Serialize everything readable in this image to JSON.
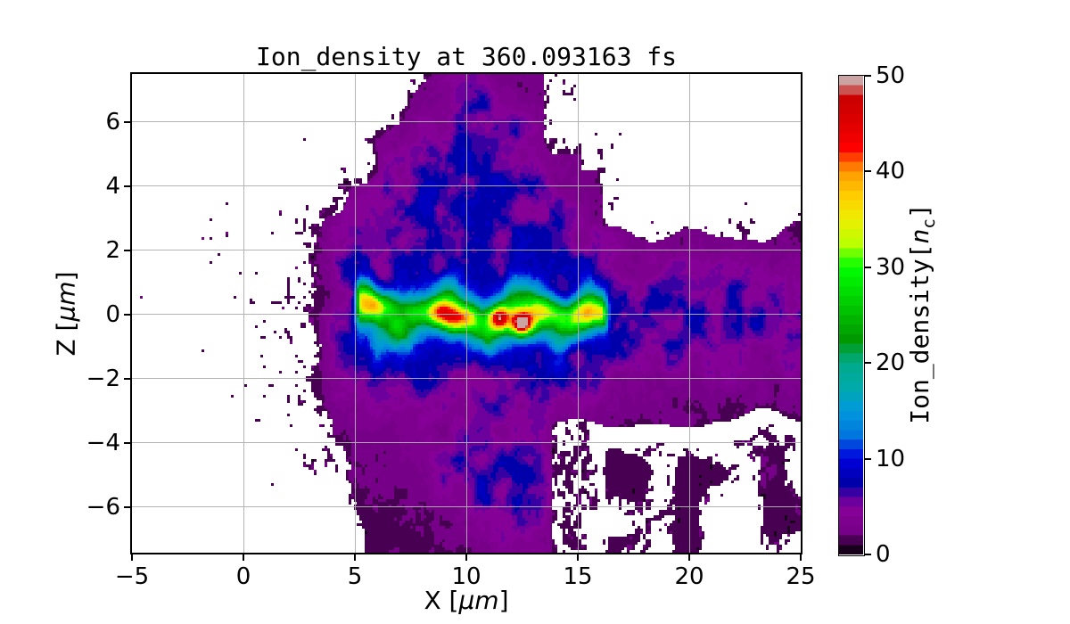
{
  "title": "Ion_density at 360.093163 fs",
  "time_fs": 360.093163,
  "axes": {
    "xlabel": {
      "pre": "X [",
      "unit": "μm",
      "post": "]"
    },
    "ylabel": {
      "pre": "Z [",
      "unit": "μm",
      "post": "]"
    },
    "x_ticks": [
      {
        "v": -5,
        "label": "−5"
      },
      {
        "v": 0,
        "label": "0"
      },
      {
        "v": 5,
        "label": "5"
      },
      {
        "v": 10,
        "label": "10"
      },
      {
        "v": 15,
        "label": "15"
      },
      {
        "v": 20,
        "label": "20"
      },
      {
        "v": 25,
        "label": "25"
      }
    ],
    "z_ticks": [
      {
        "v": 6,
        "label": "6"
      },
      {
        "v": 4,
        "label": "4"
      },
      {
        "v": 2,
        "label": "2"
      },
      {
        "v": 0,
        "label": "0"
      },
      {
        "v": -2,
        "label": "−2"
      },
      {
        "v": -4,
        "label": "−4"
      },
      {
        "v": -6,
        "label": "−6"
      }
    ],
    "grid_x": [
      0,
      5,
      10,
      15,
      20
    ],
    "grid_z": [
      -6,
      -4,
      -2,
      0,
      2,
      4,
      6
    ],
    "grid_color": "#b0b0b0"
  },
  "colorbar": {
    "label_pre": "Ion_density[",
    "label_var": "n",
    "label_sub": "c",
    "label_post": "]",
    "ticks": [
      {
        "v": 0,
        "label": "0"
      },
      {
        "v": 10,
        "label": "10"
      },
      {
        "v": 20,
        "label": "20"
      },
      {
        "v": 30,
        "label": "30"
      },
      {
        "v": 40,
        "label": "40"
      },
      {
        "v": 50,
        "label": "50"
      }
    ]
  },
  "chart_data": {
    "type": "heatmap",
    "title": "Ion_density at 360.093163 fs",
    "xlabel": "X [μm]",
    "ylabel": "Z [μm]",
    "colorbar_label": "Ion_density[n_c]",
    "xlim": [
      -5,
      25
    ],
    "zlim": [
      -7.42,
      7.5
    ],
    "vmin": 0,
    "vmax": 50,
    "levels": 50,
    "colormap": "nipy_spectral",
    "masked_color": "#ffffff",
    "description": "Particle-in-cell ion density map: diffuse plasma cloud (0-6 nc, black/purple) spanning x≈2-16.5 μm with speckled edges; magenta channel of ~3-6 nc around z≈0 extending to x=25; bright wavy filament of 15-50 nc along z≈0 from x≈5 to x≈16.5; white = zero density.",
    "max_density": {
      "x": 12.5,
      "z": -0.3,
      "value": 50
    },
    "colormap_stops": [
      [
        0.0,
        0,
        0,
        0
      ],
      [
        0.05,
        119,
        0,
        136
      ],
      [
        0.1,
        136,
        0,
        153
      ],
      [
        0.15,
        0,
        0,
        170
      ],
      [
        0.2,
        0,
        0,
        221
      ],
      [
        0.25,
        0,
        119,
        221
      ],
      [
        0.3,
        0,
        153,
        221
      ],
      [
        0.35,
        0,
        170,
        170
      ],
      [
        0.4,
        0,
        170,
        136
      ],
      [
        0.45,
        0,
        153,
        0
      ],
      [
        0.5,
        0,
        187,
        0
      ],
      [
        0.55,
        0,
        221,
        0
      ],
      [
        0.6,
        0,
        255,
        0
      ],
      [
        0.65,
        187,
        255,
        0
      ],
      [
        0.7,
        238,
        238,
        0
      ],
      [
        0.75,
        255,
        204,
        0
      ],
      [
        0.8,
        255,
        153,
        0
      ],
      [
        0.85,
        255,
        0,
        0
      ],
      [
        0.9,
        221,
        0,
        0
      ],
      [
        0.95,
        204,
        0,
        0
      ],
      [
        1.0,
        204,
        204,
        204
      ]
    ],
    "field": {
      "seed": 7,
      "grid": [
        250,
        179
      ],
      "mask_below": 0.75,
      "cloud": {
        "left_edge_base": 2.25,
        "left_edge_quad": 0.05,
        "left_edge_top_slope": 0.55,
        "edge_ragged": 1.5,
        "right_edge_sharp": 15.35,
        "right_edge_upper": 16.3,
        "right_edge_bottom": 16.2,
        "top_band_z": 2.6,
        "bottom_band_z": -3.2,
        "sharp_above_z": 4.5,
        "top_gap_x": 13.0,
        "top_gap_z": 4.6,
        "tail_amp": 0.22,
        "tail_scale": 2.8,
        "topright_amp": 0.5,
        "topright_zfade": 3.9,
        "bottomright_amp": 0.85
      },
      "purple": {
        "amp": 5.8,
        "x_rise": 3.0,
        "x_rise_w": 2.2,
        "right_fade": 0.25,
        "z_center": -0.15,
        "sz": 2.15,
        "sz_shrink": 0.75,
        "cap": 6.3,
        "blobs": [
          [
            10.3,
            5.6,
            2.1,
            1.7,
            4.2
          ],
          [
            8.2,
            2.9,
            2.4,
            1.2,
            3.0
          ],
          [
            12.7,
            3.5,
            1.5,
            1.1,
            2.6
          ],
          [
            10.6,
            -4.9,
            1.9,
            1.3,
            3.2
          ],
          [
            12.4,
            -5.9,
            1.3,
            1.0,
            2.8
          ]
        ]
      },
      "filament": {
        "x_start": 4.85,
        "x_end": 16.55,
        "base": 15,
        "wave_amp": 0.3,
        "wave_freq": 1.8,
        "wave_phase": 4.7,
        "z_offset": -0.05,
        "sigma": 0.42,
        "sigma_var": 0.25,
        "hotspots": [
          [
            4.95,
            0.75,
            9,
            0.35,
            0.3
          ],
          [
            5.6,
            0.35,
            7,
            0.5,
            0.35
          ],
          [
            6.35,
            0.3,
            13,
            0.55,
            0.3
          ],
          [
            6.05,
            -0.95,
            6,
            0.25,
            0.6
          ],
          [
            6.8,
            -0.5,
            8,
            0.4,
            0.35
          ],
          [
            7.6,
            0.15,
            9,
            0.5,
            0.3
          ],
          [
            8.8,
            0.05,
            20,
            0.5,
            0.3
          ],
          [
            9.55,
            -0.2,
            16,
            0.4,
            0.28
          ],
          [
            10.2,
            -0.1,
            10,
            0.4,
            0.3
          ],
          [
            11.45,
            -0.1,
            24,
            0.33,
            0.26
          ],
          [
            12.5,
            -0.28,
            30,
            0.42,
            0.3
          ],
          [
            12.52,
            -0.28,
            14,
            0.18,
            0.14
          ],
          [
            13.5,
            0.15,
            13,
            0.5,
            0.3
          ],
          [
            14.3,
            -0.05,
            8,
            0.45,
            0.3
          ],
          [
            15.35,
            0.1,
            11,
            0.5,
            0.3
          ],
          [
            16.25,
            -0.05,
            12,
            0.45,
            0.3
          ]
        ]
      }
    }
  }
}
